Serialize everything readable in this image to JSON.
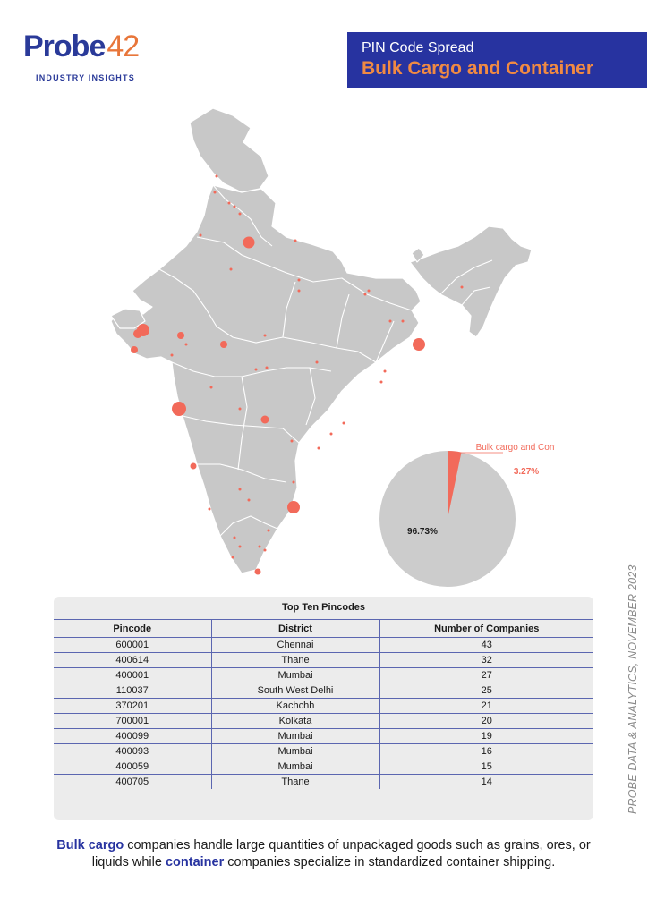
{
  "logo": {
    "word_main": "Probe",
    "word_num": "42",
    "tagline": "INDUSTRY INSIGHTS"
  },
  "header": {
    "subtitle": "PIN Code Spread",
    "title": "Bulk Cargo and Container"
  },
  "colors": {
    "brand_blue": "#2733a0",
    "accent_orange": "#f08a43",
    "map_fill": "#c8c8c8",
    "marker": "#f26a5a",
    "pie_other": "#cccccc"
  },
  "chart_data": {
    "type": "pie",
    "slices": [
      {
        "label": "Bulk cargo and Container",
        "value": 3.27,
        "display": "3.27%",
        "color": "#f26a5a"
      },
      {
        "label": "",
        "value": 96.73,
        "display": "96.73%",
        "color": "#cccccc"
      }
    ],
    "callout_label": "Bulk cargo and Container",
    "callout_value": "3.27%",
    "other_value": "96.73%"
  },
  "side_text": "PROBE DATA & ANALYTICS, NOVEMBER 2023",
  "table": {
    "title": "Top Ten Pincodes",
    "headers": [
      "Pincode",
      "District",
      "Number of Companies"
    ],
    "rows": [
      [
        "600001",
        "Chennai",
        "43"
      ],
      [
        "400614",
        "Thane",
        "32"
      ],
      [
        "400001",
        "Mumbai",
        "27"
      ],
      [
        "110037",
        "South West Delhi",
        "25"
      ],
      [
        "370201",
        "Kachchh",
        "21"
      ],
      [
        "700001",
        "Kolkata",
        "20"
      ],
      [
        "400099",
        "Mumbai",
        "19"
      ],
      [
        "400093",
        "Mumbai",
        "16"
      ],
      [
        "400059",
        "Mumbai",
        "15"
      ],
      [
        "400705",
        "Thane",
        "14"
      ]
    ]
  },
  "footer": {
    "bold1": "Bulk cargo",
    "text1": " companies handle large quantities of unpackaged goods such as grains, ores, or liquids while ",
    "bold2": "container",
    "text2": " companies specialize in standardized container shipping."
  }
}
